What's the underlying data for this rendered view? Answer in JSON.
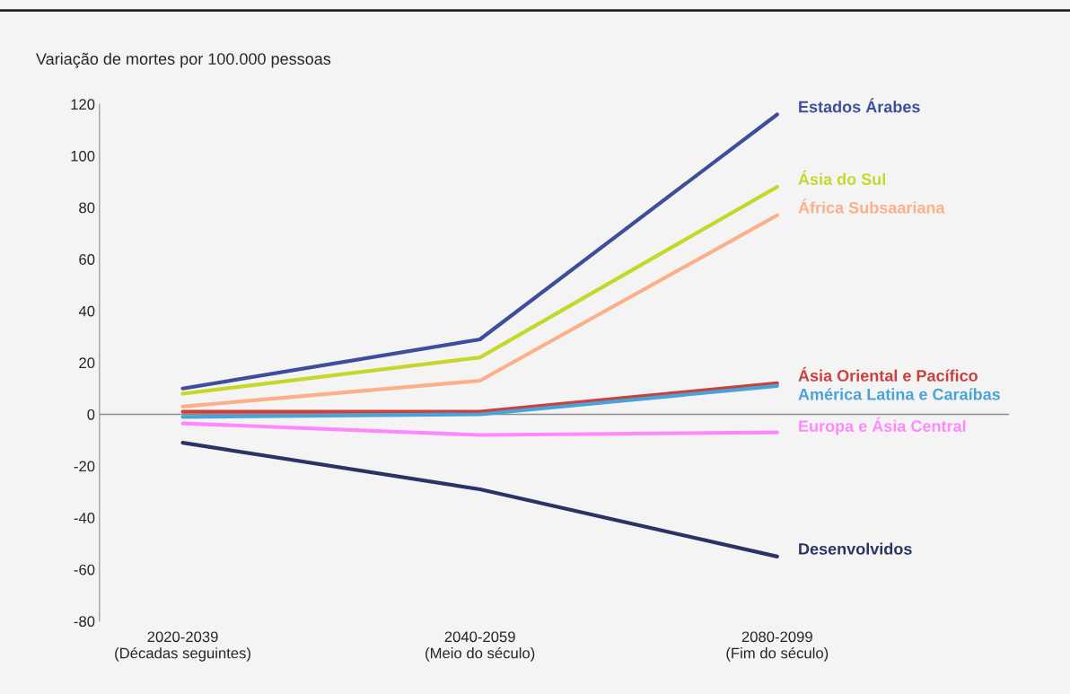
{
  "chart_data": {
    "type": "line",
    "ylabel": "Variação de mortes por 100.000 pessoas",
    "categories": [
      "2020-2039\n(Décadas seguintes)",
      "2040-2059\n(Meio do século)",
      "2080-2099\n(Fim do século)"
    ],
    "series": [
      {
        "name": "Estados Árabes",
        "color": "#3d4f9a",
        "values": [
          10,
          29,
          116
        ]
      },
      {
        "name": "Ásia do Sul",
        "color": "#c5d829",
        "values": [
          8,
          22,
          88
        ]
      },
      {
        "name": "África Subsaariana",
        "color": "#fbb08a",
        "values": [
          3,
          13,
          77
        ]
      },
      {
        "name": "Ásia Oriental e Pacífico",
        "color": "#c9413a",
        "values": [
          1,
          1,
          12
        ]
      },
      {
        "name": "América Latina e Caraíbas",
        "color": "#4aa3d8",
        "values": [
          -1,
          0,
          11
        ]
      },
      {
        "name": "Europa e Ásia Central",
        "color": "#ff88ff",
        "values": [
          -3.5,
          -8,
          -7
        ]
      },
      {
        "name": "Desenvolvidos",
        "color": "#2b3366",
        "values": [
          -11,
          -29,
          -55
        ]
      }
    ],
    "ylim": [
      -80,
      120
    ],
    "yticks": [
      -80,
      -60,
      -40,
      -20,
      0,
      20,
      40,
      60,
      80,
      100,
      120
    ],
    "ref_lines": [
      {
        "axis": "y",
        "value": 0,
        "color": "#8c8c8c"
      }
    ],
    "grid": false,
    "legend": false,
    "marker": "none",
    "line_style": "solid"
  }
}
